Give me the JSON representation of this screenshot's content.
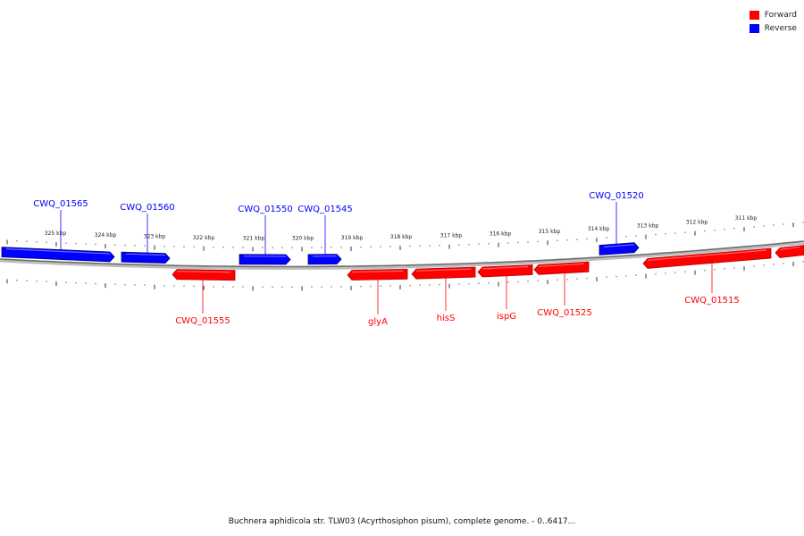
{
  "legend": {
    "forward": {
      "label": "Forward",
      "color": "#ff0000"
    },
    "reverse": {
      "label": "Reverse",
      "color": "#0000ff"
    }
  },
  "caption": "Buchnera aphidicola str. TLW03 (Acyrthosiphon pisum), complete genome. - 0..6417...",
  "ticks": [
    "325 kbp",
    "324 kbp",
    "323 kbp",
    "322 kbp",
    "321 kbp",
    "320 kbp",
    "319 kbp",
    "318 kbp",
    "317 kbp",
    "316 kbp",
    "315 kbp",
    "314 kbp",
    "313 kbp",
    "312 kbp",
    "311 kbp"
  ],
  "genes": [
    {
      "name": "CWQ_01565",
      "strand": "reverse"
    },
    {
      "name": "CWQ_01560",
      "strand": "reverse"
    },
    {
      "name": "CWQ_01555",
      "strand": "forward"
    },
    {
      "name": "CWQ_01550",
      "strand": "reverse"
    },
    {
      "name": "CWQ_01545",
      "strand": "reverse"
    },
    {
      "name": "glyA",
      "strand": "forward"
    },
    {
      "name": "hisS",
      "strand": "forward"
    },
    {
      "name": "ispG",
      "strand": "forward"
    },
    {
      "name": "CWQ_01525",
      "strand": "forward"
    },
    {
      "name": "CWQ_01520",
      "strand": "reverse"
    },
    {
      "name": "CWQ_01515",
      "strand": "forward"
    },
    {
      "name": "",
      "strand": "forward"
    }
  ]
}
